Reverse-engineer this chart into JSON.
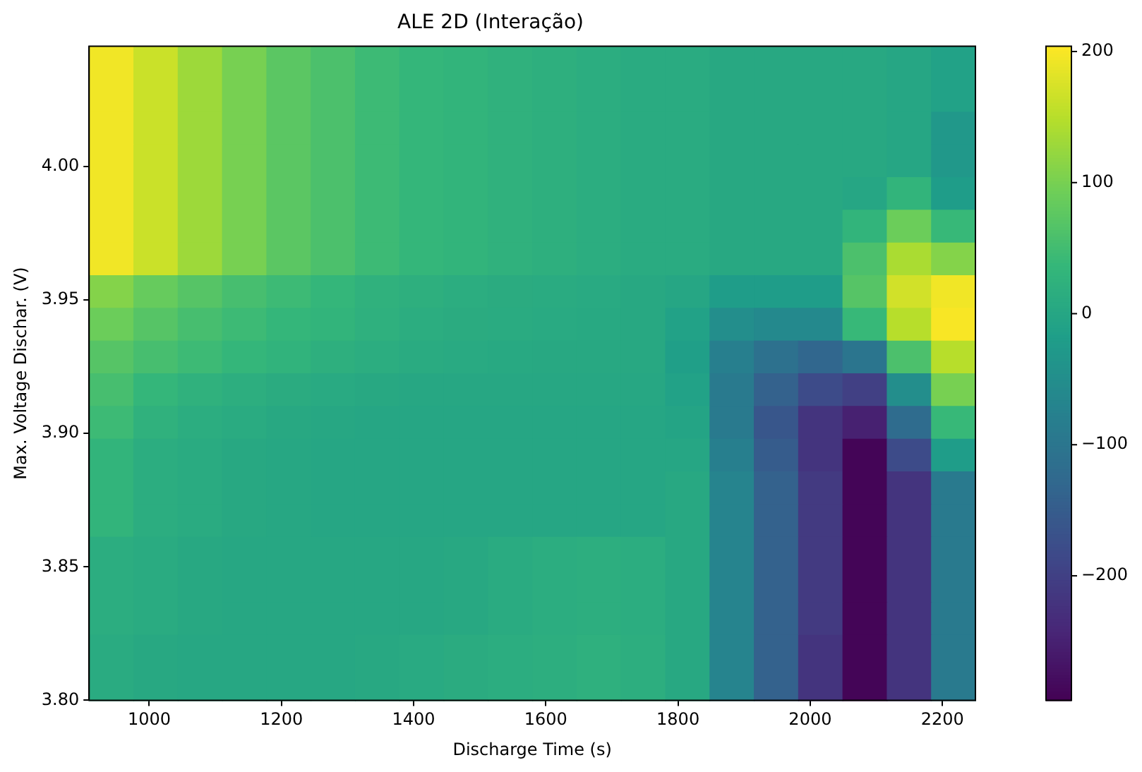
{
  "chart_data": {
    "type": "heatmap",
    "title": "ALE 2D (Interação)",
    "xlabel": "Discharge Time (s)",
    "ylabel": "Max. Voltage Dischar. (V)",
    "xlim": [
      909,
      2250
    ],
    "xticks": [
      1000,
      1200,
      1400,
      1600,
      1800,
      2000,
      2200
    ],
    "ylim": [
      3.8,
      4.045
    ],
    "yticks": [
      {
        "value": 3.8,
        "label": "3.80"
      },
      {
        "value": 3.85,
        "label": "3.85"
      },
      {
        "value": 3.9,
        "label": "3.90"
      },
      {
        "value": 3.95,
        "label": "3.95"
      },
      {
        "value": 4.0,
        "label": "4.00"
      }
    ],
    "clim": [
      -295,
      204
    ],
    "cticks": [
      -200,
      -100,
      0,
      100,
      200
    ],
    "cells": [
      [
        195,
        165,
        130,
        100,
        75,
        60,
        45,
        35,
        30,
        25,
        20,
        15,
        10,
        10,
        5,
        5,
        5,
        5,
        0,
        -10
      ],
      [
        195,
        165,
        130,
        100,
        75,
        60,
        45,
        35,
        30,
        25,
        20,
        15,
        10,
        10,
        5,
        5,
        5,
        5,
        0,
        -10
      ],
      [
        195,
        165,
        130,
        100,
        75,
        60,
        45,
        35,
        30,
        25,
        20,
        15,
        10,
        10,
        5,
        5,
        5,
        5,
        0,
        -30
      ],
      [
        195,
        165,
        130,
        100,
        75,
        60,
        45,
        35,
        30,
        25,
        20,
        15,
        10,
        10,
        5,
        5,
        5,
        5,
        0,
        -30
      ],
      [
        195,
        165,
        130,
        100,
        75,
        60,
        45,
        35,
        30,
        25,
        20,
        15,
        10,
        10,
        5,
        5,
        5,
        0,
        30,
        -20
      ],
      [
        195,
        165,
        130,
        100,
        75,
        60,
        45,
        35,
        30,
        25,
        20,
        15,
        10,
        10,
        5,
        5,
        5,
        30,
        90,
        40
      ],
      [
        195,
        165,
        130,
        100,
        75,
        60,
        45,
        35,
        30,
        25,
        20,
        15,
        10,
        10,
        5,
        5,
        5,
        60,
        140,
        110
      ],
      [
        110,
        85,
        70,
        55,
        45,
        35,
        25,
        20,
        15,
        12,
        10,
        8,
        5,
        0,
        -20,
        -20,
        -20,
        70,
        170,
        195
      ],
      [
        90,
        70,
        55,
        45,
        35,
        30,
        22,
        15,
        12,
        10,
        8,
        6,
        5,
        -10,
        -50,
        -60,
        -60,
        40,
        150,
        200
      ],
      [
        70,
        55,
        45,
        35,
        28,
        20,
        15,
        10,
        8,
        6,
        5,
        5,
        5,
        -15,
        -80,
        -110,
        -130,
        -100,
        60,
        150
      ],
      [
        55,
        35,
        25,
        18,
        12,
        8,
        5,
        3,
        2,
        2,
        2,
        3,
        3,
        -10,
        -90,
        -140,
        -180,
        -200,
        -50,
        100
      ],
      [
        45,
        25,
        15,
        10,
        5,
        2,
        0,
        0,
        0,
        0,
        0,
        0,
        0,
        -5,
        -90,
        -160,
        -220,
        -250,
        -120,
        40
      ],
      [
        30,
        15,
        10,
        5,
        3,
        0,
        0,
        0,
        0,
        0,
        0,
        0,
        0,
        0,
        -80,
        -150,
        -220,
        -290,
        -180,
        -20
      ],
      [
        30,
        15,
        10,
        5,
        3,
        0,
        0,
        0,
        0,
        0,
        0,
        0,
        0,
        5,
        -70,
        -140,
        -210,
        -290,
        -220,
        -90
      ],
      [
        30,
        15,
        10,
        5,
        3,
        0,
        0,
        0,
        0,
        0,
        0,
        0,
        0,
        5,
        -70,
        -140,
        -210,
        -290,
        -220,
        -90
      ],
      [
        15,
        10,
        5,
        3,
        2,
        2,
        2,
        3,
        5,
        10,
        15,
        18,
        15,
        5,
        -70,
        -140,
        -210,
        -290,
        -220,
        -90
      ],
      [
        15,
        10,
        5,
        3,
        2,
        2,
        2,
        3,
        5,
        10,
        15,
        18,
        15,
        5,
        -70,
        -140,
        -210,
        -290,
        -220,
        -90
      ],
      [
        15,
        10,
        5,
        3,
        2,
        2,
        2,
        3,
        5,
        10,
        15,
        18,
        15,
        5,
        -70,
        -140,
        -210,
        -290,
        -220,
        -90
      ],
      [
        10,
        5,
        3,
        2,
        2,
        3,
        5,
        8,
        12,
        15,
        18,
        22,
        18,
        5,
        -70,
        -140,
        -220,
        -290,
        -220,
        -90
      ],
      [
        10,
        5,
        3,
        2,
        2,
        3,
        5,
        8,
        12,
        15,
        18,
        22,
        18,
        5,
        -70,
        -140,
        -220,
        -290,
        -220,
        -90
      ]
    ]
  }
}
